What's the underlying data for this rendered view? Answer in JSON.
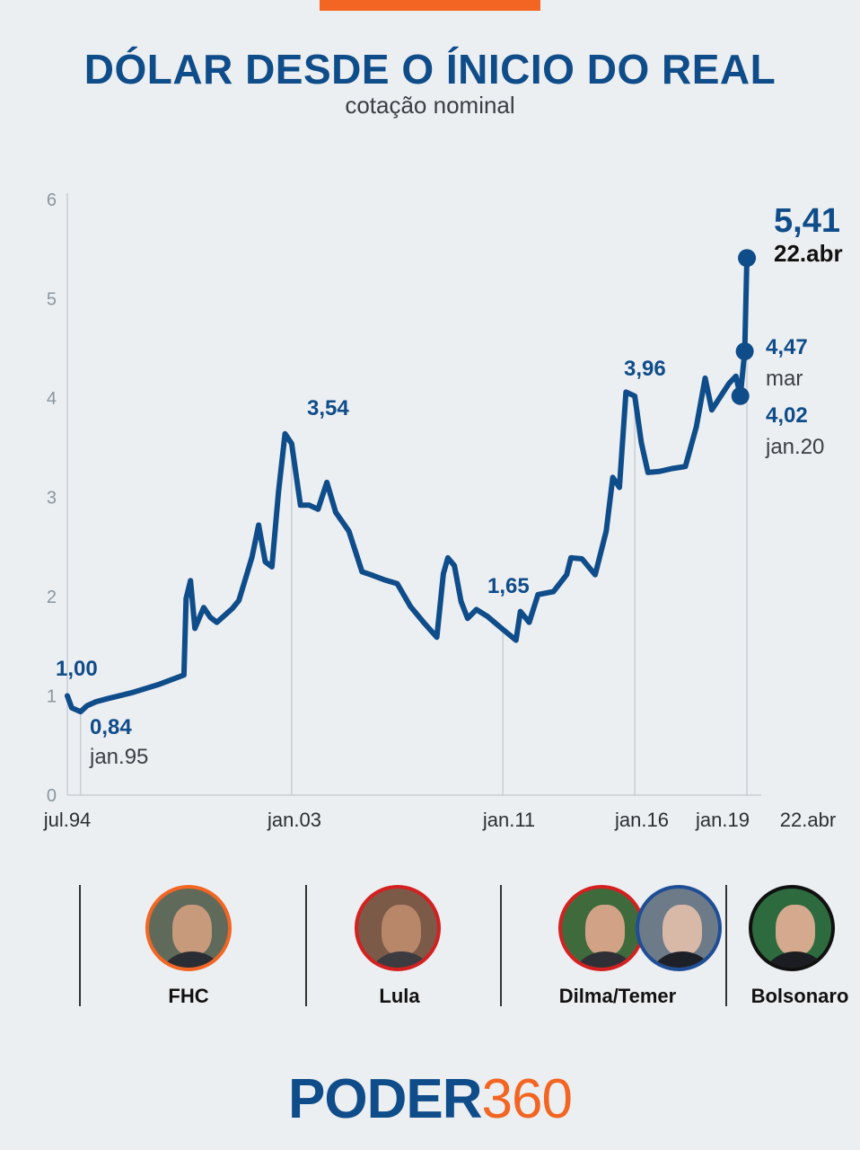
{
  "header": {
    "title": "DÓLAR DESDE O ÍNICIO DO REAL",
    "subtitle": "cotação nominal"
  },
  "colors": {
    "line": "#0f4c8a",
    "accent": "#f26522",
    "background": "#eceff1"
  },
  "chart_data": {
    "type": "line",
    "title": "DÓLAR DESDE O ÍNICIO DO REAL",
    "subtitle": "cotação nominal",
    "xlabel": "",
    "ylabel": "",
    "ylim": [
      0,
      6
    ],
    "yticks": [
      "0",
      "1",
      "2",
      "3",
      "4",
      "5",
      "6"
    ],
    "xticks": [
      "jul.94",
      "jan.03",
      "jan.11",
      "jan.16",
      "jan.19",
      "22.abr"
    ],
    "grid": false,
    "series": [
      {
        "name": "",
        "points": [
          [
            "1994-07",
            1.0
          ],
          [
            "1994-09",
            0.88
          ],
          [
            "1995-01",
            0.84
          ],
          [
            "1995-04",
            0.9
          ],
          [
            "1995-08",
            0.94
          ],
          [
            "1996-01",
            0.97
          ],
          [
            "1996-12",
            1.03
          ],
          [
            "1997-12",
            1.11
          ],
          [
            "1998-12",
            1.21
          ],
          [
            "1999-01",
            1.98
          ],
          [
            "1999-03",
            2.16
          ],
          [
            "1999-05",
            1.68
          ],
          [
            "1999-09",
            1.89
          ],
          [
            "1999-12",
            1.79
          ],
          [
            "2000-03",
            1.74
          ],
          [
            "2000-10",
            1.88
          ],
          [
            "2001-01",
            1.96
          ],
          [
            "2001-07",
            2.4
          ],
          [
            "2001-10",
            2.72
          ],
          [
            "2002-01",
            2.35
          ],
          [
            "2002-04",
            2.3
          ],
          [
            "2002-07",
            3.05
          ],
          [
            "2002-10",
            3.64
          ],
          [
            "2003-01",
            3.54
          ],
          [
            "2003-05",
            2.92
          ],
          [
            "2003-09",
            2.92
          ],
          [
            "2004-01",
            2.88
          ],
          [
            "2004-05",
            3.15
          ],
          [
            "2004-09",
            2.85
          ],
          [
            "2005-03",
            2.66
          ],
          [
            "2005-09",
            2.25
          ],
          [
            "2006-01",
            2.22
          ],
          [
            "2006-07",
            2.17
          ],
          [
            "2007-01",
            2.13
          ],
          [
            "2007-07",
            1.9
          ],
          [
            "2008-01",
            1.74
          ],
          [
            "2008-07",
            1.59
          ],
          [
            "2008-10",
            2.23
          ],
          [
            "2008-12",
            2.39
          ],
          [
            "2009-03",
            2.31
          ],
          [
            "2009-06",
            1.95
          ],
          [
            "2009-09",
            1.78
          ],
          [
            "2010-01",
            1.87
          ],
          [
            "2010-06",
            1.8
          ],
          [
            "2011-01",
            1.67
          ],
          [
            "2011-07",
            1.56
          ],
          [
            "2011-09",
            1.85
          ],
          [
            "2012-01",
            1.74
          ],
          [
            "2012-05",
            2.02
          ],
          [
            "2012-12",
            2.05
          ],
          [
            "2013-06",
            2.22
          ],
          [
            "2013-08",
            2.39
          ],
          [
            "2014-01",
            2.38
          ],
          [
            "2014-07",
            2.22
          ],
          [
            "2014-12",
            2.66
          ],
          [
            "2015-03",
            3.2
          ],
          [
            "2015-06",
            3.1
          ],
          [
            "2015-09",
            4.06
          ],
          [
            "2016-01",
            4.02
          ],
          [
            "2016-04",
            3.55
          ],
          [
            "2016-07",
            3.25
          ],
          [
            "2016-12",
            3.26
          ],
          [
            "2017-06",
            3.29
          ],
          [
            "2017-12",
            3.31
          ],
          [
            "2018-05",
            3.71
          ],
          [
            "2018-09",
            4.2
          ],
          [
            "2018-12",
            3.88
          ],
          [
            "2019-05",
            4.05
          ],
          [
            "2019-08",
            4.15
          ],
          [
            "2019-11",
            4.22
          ],
          [
            "2020-01",
            4.02
          ],
          [
            "2020-03",
            4.47
          ],
          [
            "2020-04",
            5.41
          ]
        ]
      }
    ],
    "annotations": [
      {
        "value": "1,00",
        "date": ""
      },
      {
        "value": "0,84",
        "date": "jan.95"
      },
      {
        "value": "3,54",
        "date": ""
      },
      {
        "value": "1,65",
        "date": ""
      },
      {
        "value": "3,96",
        "date": ""
      },
      {
        "value": "4,47",
        "date": "mar"
      },
      {
        "value": "4,02",
        "date": "jan.20"
      },
      {
        "value": "5,41",
        "date": "22.abr"
      }
    ]
  },
  "presidents": [
    {
      "name": "FHC",
      "photo": "fhc-photo"
    },
    {
      "name": "Lula",
      "photo": "lula-photo"
    },
    {
      "name": "Dilma/Temer",
      "photo": "dilma-temer-photo"
    },
    {
      "name": "Bolsonaro",
      "photo": "bolsonaro-photo"
    }
  ],
  "logo": {
    "part1": "PODER",
    "part2": "360"
  }
}
